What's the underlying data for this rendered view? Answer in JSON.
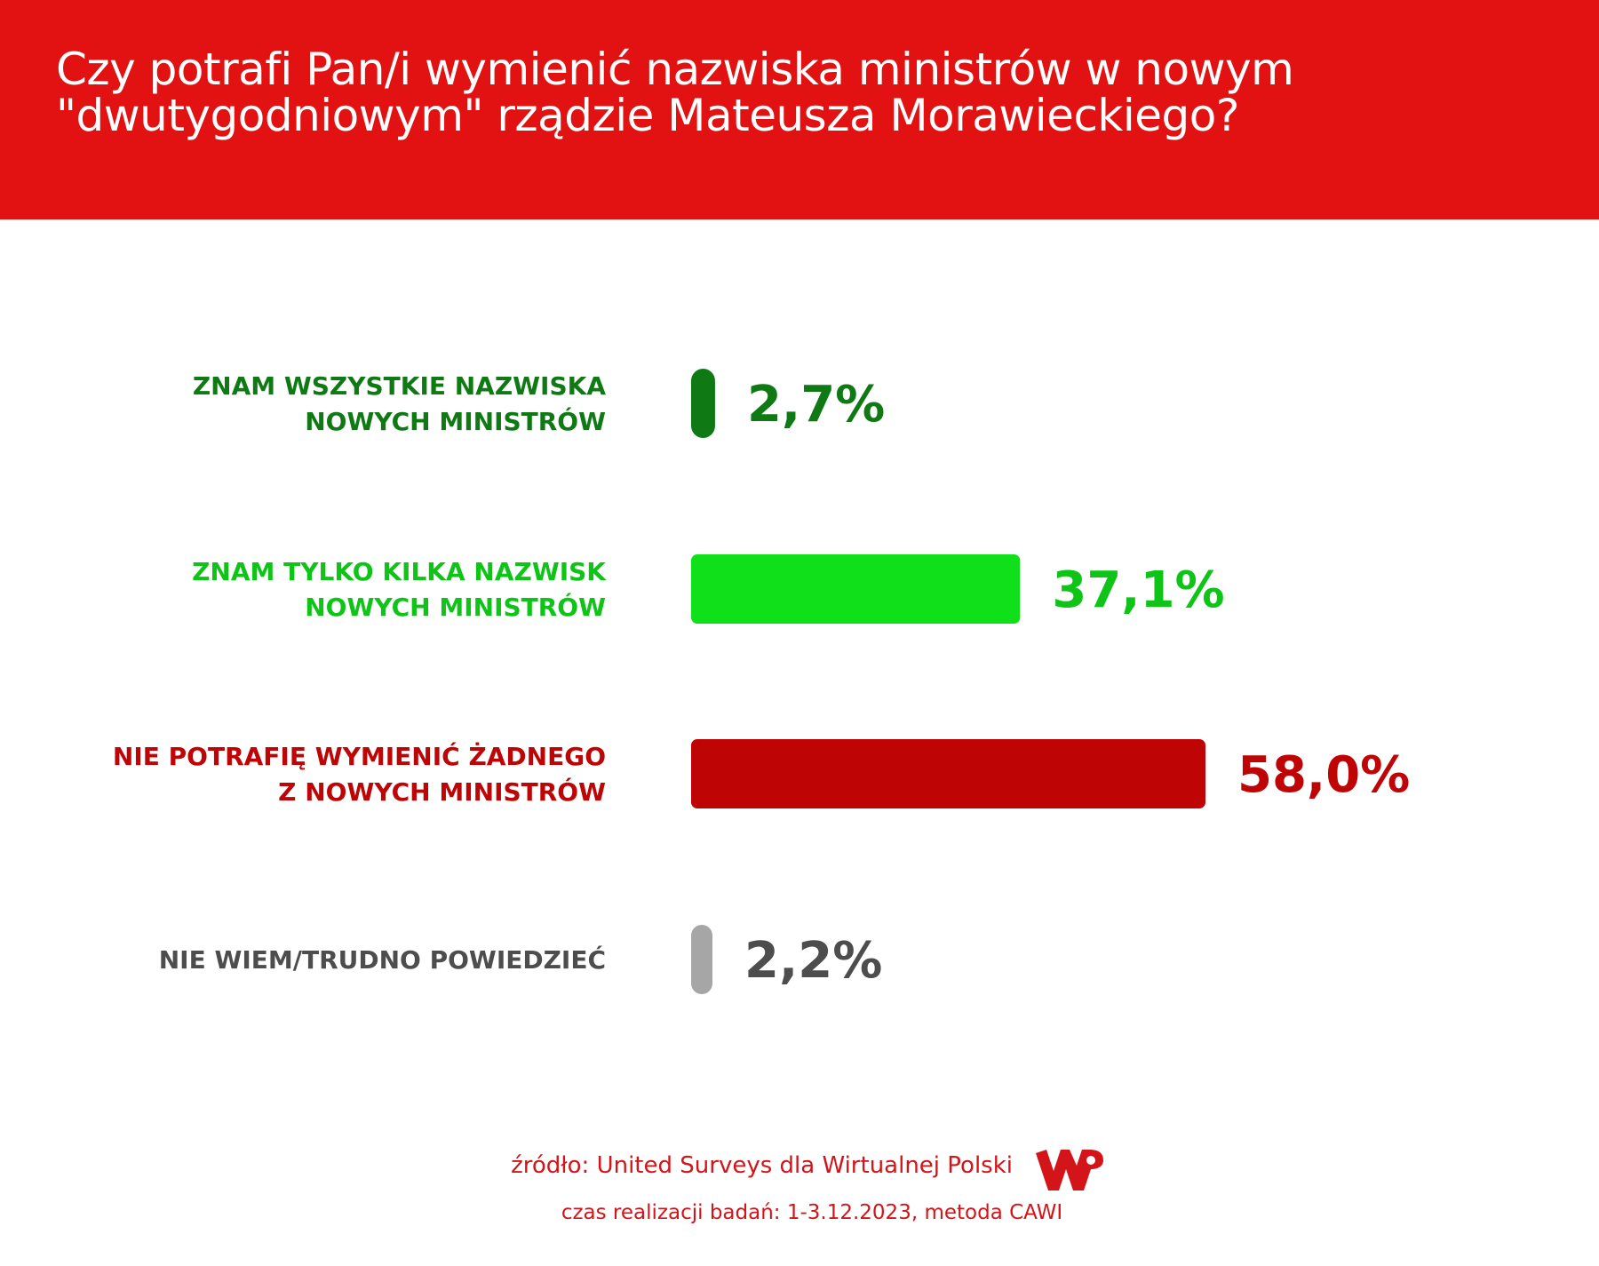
{
  "header": {
    "title_lines": [
      "Czy potrafi Pan/i wymienić nazwiska ministrów w nowym",
      "\"dwutygodniowym\" rządzie Mateusza Morawieckiego?"
    ]
  },
  "chart_data": {
    "type": "bar",
    "orientation": "horizontal",
    "title": "Czy potrafi Pan/i wymienić nazwiska ministrów w nowym \"dwutygodniowym\" rządzie Mateusza Morawieckiego?",
    "categories": [
      [
        "ZNAM WSZYSTKIE NAZWISKA",
        "NOWYCH MINISTRÓW"
      ],
      [
        "ZNAM TYLKO KILKA NAZWISK",
        "NOWYCH MINISTRÓW"
      ],
      [
        "NIE POTRAFIĘ WYMIENIĆ ŻADNEGO",
        "Z NOWYCH MINISTRÓW"
      ],
      [
        "NIE WIEM/TRUDNO POWIEDZIEĆ"
      ]
    ],
    "values": [
      2.7,
      37.1,
      58.0,
      2.2
    ],
    "value_labels": [
      "2,7%",
      "37,1%",
      "58,0%",
      "2,2%"
    ],
    "colors": [
      "#0f7a14",
      "#0fe01a",
      "#bf0406",
      "#a6a6a6"
    ],
    "label_colors": [
      "#0f7a14",
      "#0ec417",
      "#bf0406",
      "#4d4d4d"
    ],
    "xlim": [
      0,
      58
    ],
    "grid": false,
    "legend": "none"
  },
  "footer": {
    "source": "źródło: United Surveys dla Wirtualnej Polski",
    "date": "czas realizacji badań: 1-3.12.2023, metoda CAWI"
  },
  "logo": {
    "text": "WP",
    "color": "#d3151a"
  }
}
